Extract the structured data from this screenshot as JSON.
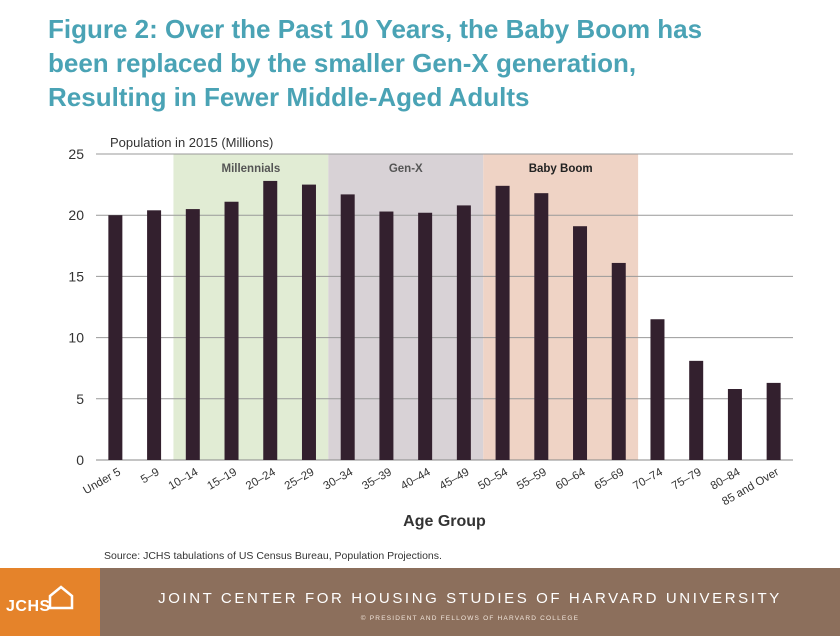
{
  "title": {
    "lines": [
      "Figure 2: Over the Past 10 Years, the Baby Boom has",
      "been replaced by the smaller Gen-X generation,",
      "Resulting in Fewer Middle-Aged Adults"
    ]
  },
  "chart_data": {
    "type": "bar",
    "ylabel": "Population in 2015 (Millions)",
    "xlabel": "Age Group",
    "ylim": [
      0,
      25
    ],
    "yticks": [
      0,
      5,
      10,
      15,
      20,
      25
    ],
    "grid": true,
    "categories": [
      "Under 5",
      "5–9",
      "10–14",
      "15–19",
      "20–24",
      "25–29",
      "30–34",
      "35–39",
      "40–44",
      "45–49",
      "50–54",
      "55–59",
      "60–64",
      "65–69",
      "70–74",
      "75–79",
      "80–84",
      "85 and Over"
    ],
    "values": [
      20.0,
      20.4,
      20.5,
      21.1,
      22.8,
      22.5,
      21.7,
      20.3,
      20.2,
      20.8,
      22.4,
      21.8,
      19.1,
      16.1,
      11.5,
      8.1,
      5.8,
      6.3
    ],
    "bar_color": "#33202e",
    "bands": [
      {
        "label": "Millennials",
        "start": "10–14",
        "end": "25–29",
        "color": "#e1ecd4",
        "label_color": "#555555"
      },
      {
        "label": "Gen-X",
        "start": "30–34",
        "end": "45–49",
        "color": "#d8d2d6",
        "label_color": "#555555"
      },
      {
        "label": "Baby Boom",
        "start": "50–54",
        "end": "65–69",
        "color": "#efd3c5",
        "label_color": "#222222"
      }
    ]
  },
  "source": "Source: JCHS tabulations of US Census Bureau, Population Projections.",
  "footer": {
    "logo": "JCHS",
    "org": "JOINT CENTER FOR HOUSING STUDIES OF HARVARD UNIVERSITY",
    "copyright": "© PRESIDENT AND FELLOWS OF HARVARD COLLEGE",
    "color": "#8c6f5c",
    "logo_color": "#e5832a"
  }
}
